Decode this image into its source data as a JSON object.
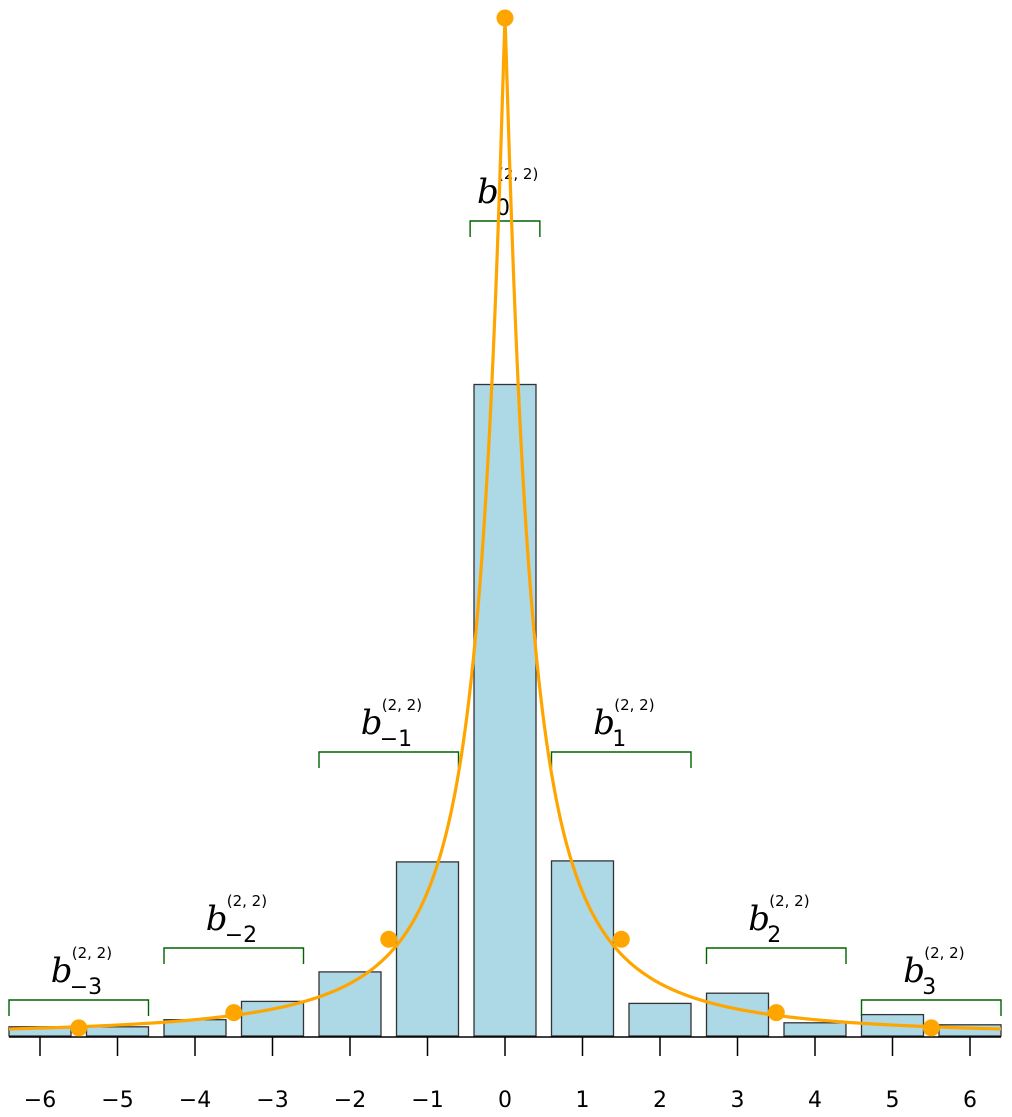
{
  "chart_data": {
    "type": "bar",
    "categories": [
      "−6",
      "−5",
      "−4",
      "−3",
      "−2",
      "−1",
      "0",
      "1",
      "2",
      "3",
      "4",
      "5",
      "6"
    ],
    "x": [
      -6,
      -5,
      -4,
      -3,
      -2,
      -1,
      0,
      1,
      2,
      3,
      4,
      5,
      6
    ],
    "values": [
      0.009,
      0.009,
      0.016,
      0.034,
      0.063,
      0.171,
      0.64,
      0.172,
      0.032,
      0.042,
      0.013,
      0.021,
      0.011
    ],
    "curve": {
      "type": "line",
      "color": "#FFA500",
      "points": [
        {
          "x": -5.5,
          "y": 0.008
        },
        {
          "x": -3.5,
          "y": 0.023
        },
        {
          "x": -1.5,
          "y": 0.095
        },
        {
          "x": 0,
          "y": 1.0
        },
        {
          "x": 1.5,
          "y": 0.095
        },
        {
          "x": 3.5,
          "y": 0.023
        },
        {
          "x": 5.5,
          "y": 0.008
        }
      ]
    },
    "brackets": [
      {
        "label": "b",
        "sub": "−3",
        "sup": "(2, 2)",
        "from": -6.4,
        "to": -4.6
      },
      {
        "label": "b",
        "sub": "−2",
        "sup": "(2, 2)",
        "from": -4.4,
        "to": -2.6
      },
      {
        "label": "b",
        "sub": "−1",
        "sup": "(2, 2)",
        "from": -2.4,
        "to": -0.6
      },
      {
        "label": "b",
        "sub": "0",
        "sup": "(2, 2)",
        "from": -0.45,
        "to": 0.45
      },
      {
        "label": "b",
        "sub": "1",
        "sup": "(2, 2)",
        "from": 0.6,
        "to": 2.4
      },
      {
        "label": "b",
        "sub": "2",
        "sup": "(2, 2)",
        "from": 2.6,
        "to": 4.4
      },
      {
        "label": "b",
        "sub": "3",
        "sup": "(2, 2)",
        "from": 4.6,
        "to": 6.4
      }
    ],
    "colors": {
      "bar_fill": "#ADD8E6",
      "bar_stroke": "#333333",
      "curve": "#FFA500",
      "bracket": "#006400"
    },
    "xlim": [
      -6.4,
      6.4
    ],
    "ylim": [
      0,
      1.0
    ],
    "grid": false,
    "title": "",
    "xlabel": "",
    "ylabel": ""
  }
}
